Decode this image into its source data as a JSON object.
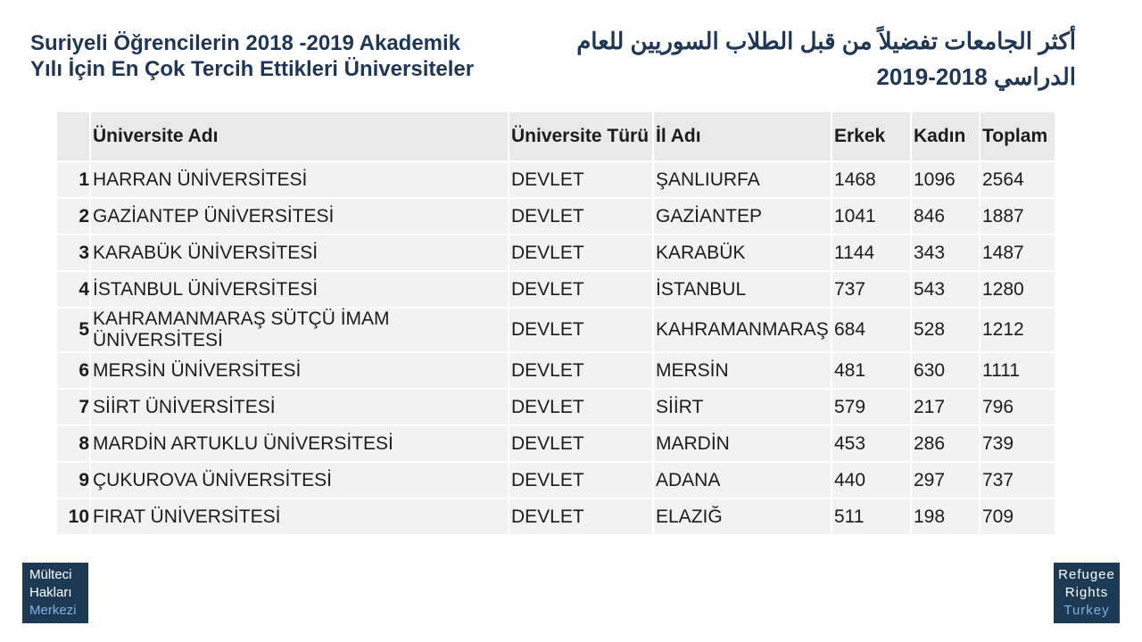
{
  "title_tr": [
    "Suriyeli Öğrencilerin 2018 -2019 Akademik",
    "Yılı İçin En Çok Tercih Ettikleri Üniversiteler"
  ],
  "title_ar": [
    "أكثر الجامعات تفضيلاً من قبل الطلاب السوريين للعام",
    "الدراسي 2018-2019"
  ],
  "table": {
    "header": [
      "Üniversite Adı",
      "Üniversite Türü",
      "İl Adı",
      "Erkek",
      "Kadın",
      "Toplam"
    ],
    "rows": [
      [
        1,
        "HARRAN ÜNİVERSİTESİ",
        "DEVLET",
        "ŞANLIURFA",
        1468,
        1096,
        2564
      ],
      [
        2,
        "GAZİANTEP ÜNİVERSİTESİ",
        "DEVLET",
        "GAZİANTEP",
        1041,
        846,
        1887
      ],
      [
        3,
        "KARABÜK ÜNİVERSİTESİ",
        "DEVLET",
        "KARABÜK",
        1144,
        343,
        1487
      ],
      [
        4,
        "İSTANBUL ÜNİVERSİTESİ",
        "DEVLET",
        "İSTANBUL",
        737,
        543,
        1280
      ],
      [
        5,
        "KAHRAMANMARAŞ SÜTÇÜ İMAM ÜNİVERSİTESİ",
        "DEVLET",
        "KAHRAMANMARAŞ",
        684,
        528,
        1212
      ],
      [
        6,
        "MERSİN ÜNİVERSİTESİ",
        "DEVLET",
        "MERSİN",
        481,
        630,
        1111
      ],
      [
        7,
        "SİİRT ÜNİVERSİTESİ",
        "DEVLET",
        "SİİRT",
        579,
        217,
        796
      ],
      [
        8,
        "MARDİN ARTUKLU ÜNİVERSİTESİ",
        "DEVLET",
        "MARDİN",
        453,
        286,
        739
      ],
      [
        9,
        "ÇUKUROVA ÜNİVERSİTESİ",
        "DEVLET",
        "ADANA",
        440,
        297,
        737
      ],
      [
        10,
        "FIRAT ÜNİVERSİTESİ",
        "DEVLET",
        "ELAZIĞ",
        511,
        198,
        709
      ]
    ]
  },
  "logo_left": [
    "Mülteci",
    "Hakları",
    "Merkezi"
  ],
  "logo_right": [
    "Refugee",
    "Rights",
    "Turkey"
  ]
}
